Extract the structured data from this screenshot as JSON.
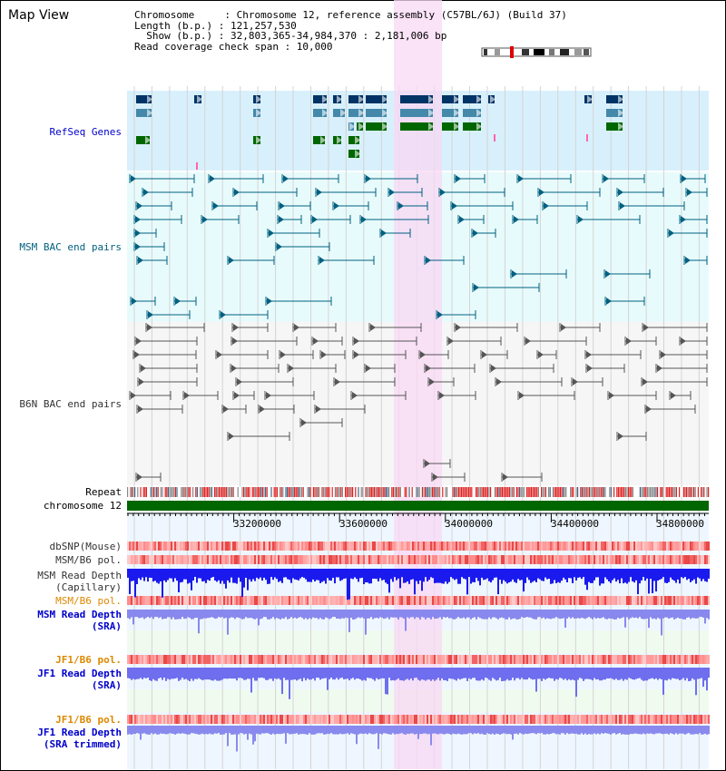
{
  "title": "Map View",
  "info": {
    "chromosome": "Chromosome     : Chromosome 12, reference assembly (C57BL/6J) (Build 37)",
    "length": "Length (b.p.) : 121,257,530",
    "show": "  Show (b.p.) : 32,803,365-34,984,370 : 2,181,006 bp",
    "coverage": "Read coverage check span : 10,000"
  },
  "tracks": {
    "refseq": "RefSeq Genes",
    "msm_bac": "MSM BAC end pairs",
    "b6n_bac": "B6N BAC end pairs",
    "repeat": "Repeat",
    "chromosome": "chromosome 12",
    "dbsnp": "dbSNP(Mouse)",
    "msm_b6_pol": "MSM/B6 pol.",
    "msm_depth_cap_1": "MSM Read Depth",
    "msm_depth_cap_2": "(Capillary)",
    "msm_b6_pol_2": "MSM/B6 pol.",
    "msm_depth_sra_1": "MSM Read Depth",
    "msm_depth_sra_2": "(SRA)",
    "jf1_b6_pol": "JF1/B6 pol.",
    "jf1_depth_sra_1": "JF1 Read Depth",
    "jf1_depth_sra_2": "(SRA)",
    "jf1_b6_pol_2": "JF1/B6 pol.",
    "jf1_depth_trim_1": "JF1 Read Depth",
    "jf1_depth_trim_2": "(SRA trimmed)"
  },
  "axis": {
    "ticks": [
      "33200000",
      "33600000",
      "34000000",
      "34400000",
      "34800000"
    ],
    "range": [
      32803365,
      34984370
    ]
  },
  "colors": {
    "label_blue": "#0000cc",
    "label_teal": "#006080",
    "label_orange": "#dd8800",
    "label_gray": "#333333",
    "refseq_bg": "#d8f0fc",
    "msm_bg": "#e8fbfc",
    "b6n_bg": "#f6f6f6",
    "highlight": "#f8d8f4",
    "chromosome_bar": "#006600",
    "gene_dark": "#003366",
    "gene_mid": "#4488aa",
    "gene_green": "#006600"
  }
}
